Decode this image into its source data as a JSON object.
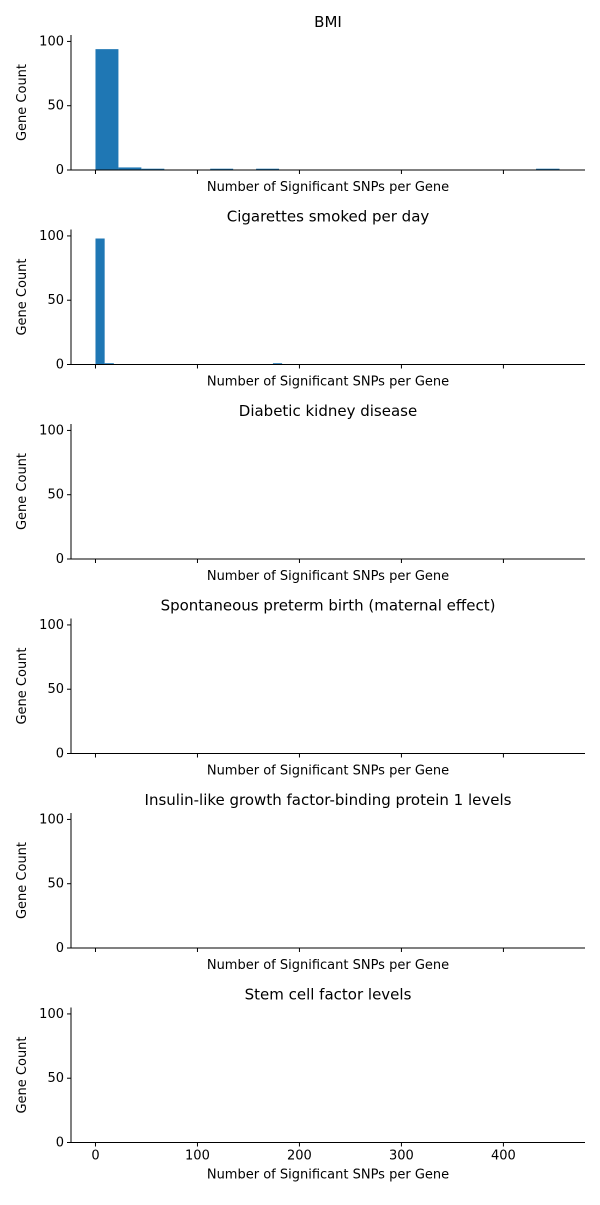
{
  "colors": {
    "bar": "#1f77b4",
    "axis": "#000000",
    "background": "#ffffff"
  },
  "chart_data": [
    {
      "type": "bar",
      "title": "BMI",
      "xlabel": "Number of Significant SNPs per Gene",
      "ylabel": "Gene Count",
      "xlim": [
        -24,
        480
      ],
      "ylim": [
        0,
        105
      ],
      "xticks": [
        0,
        100,
        200,
        300,
        400
      ],
      "yticks": [
        0,
        50,
        100
      ],
      "show_xticklabels": false,
      "grid": false,
      "bins": [
        {
          "x0": 0,
          "x1": 22.5,
          "count": 94
        },
        {
          "x0": 22.5,
          "x1": 45,
          "count": 2
        },
        {
          "x0": 45,
          "x1": 67.5,
          "count": 1
        },
        {
          "x0": 112.5,
          "x1": 135,
          "count": 1
        },
        {
          "x0": 157.5,
          "x1": 180,
          "count": 1
        },
        {
          "x0": 432,
          "x1": 455,
          "count": 1
        }
      ]
    },
    {
      "type": "bar",
      "title": "Cigarettes smoked per day",
      "xlabel": "Number of Significant SNPs per Gene",
      "ylabel": "Gene Count",
      "xlim": [
        -24,
        480
      ],
      "ylim": [
        0,
        105
      ],
      "xticks": [
        0,
        100,
        200,
        300,
        400
      ],
      "yticks": [
        0,
        50,
        100
      ],
      "show_xticklabels": false,
      "grid": false,
      "bins": [
        {
          "x0": 0,
          "x1": 9,
          "count": 98
        },
        {
          "x0": 9,
          "x1": 18,
          "count": 1
        },
        {
          "x0": 174,
          "x1": 183,
          "count": 1
        }
      ]
    },
    {
      "type": "bar",
      "title": "Diabetic kidney disease",
      "xlabel": "Number of Significant SNPs per Gene",
      "ylabel": "Gene Count",
      "xlim": [
        -24,
        480
      ],
      "ylim": [
        0,
        105
      ],
      "xticks": [
        0,
        100,
        200,
        300,
        400
      ],
      "yticks": [
        0,
        50,
        100
      ],
      "show_xticklabels": false,
      "grid": false,
      "bins": []
    },
    {
      "type": "bar",
      "title": "Spontaneous preterm birth (maternal effect)",
      "xlabel": "Number of Significant SNPs per Gene",
      "ylabel": "Gene Count",
      "xlim": [
        -24,
        480
      ],
      "ylim": [
        0,
        105
      ],
      "xticks": [
        0,
        100,
        200,
        300,
        400
      ],
      "yticks": [
        0,
        50,
        100
      ],
      "show_xticklabels": false,
      "grid": false,
      "bins": []
    },
    {
      "type": "bar",
      "title": "Insulin-like growth factor-binding protein 1 levels",
      "xlabel": "Number of Significant SNPs per Gene",
      "ylabel": "Gene Count",
      "xlim": [
        -24,
        480
      ],
      "ylim": [
        0,
        105
      ],
      "xticks": [
        0,
        100,
        200,
        300,
        400
      ],
      "yticks": [
        0,
        50,
        100
      ],
      "show_xticklabels": false,
      "grid": false,
      "bins": []
    },
    {
      "type": "bar",
      "title": "Stem cell factor levels",
      "xlabel": "Number of Significant SNPs per Gene",
      "ylabel": "Gene Count",
      "xlim": [
        -24,
        480
      ],
      "ylim": [
        0,
        105
      ],
      "xticks": [
        0,
        100,
        200,
        300,
        400
      ],
      "yticks": [
        0,
        50,
        100
      ],
      "show_xticklabels": true,
      "grid": false,
      "bins": []
    }
  ]
}
